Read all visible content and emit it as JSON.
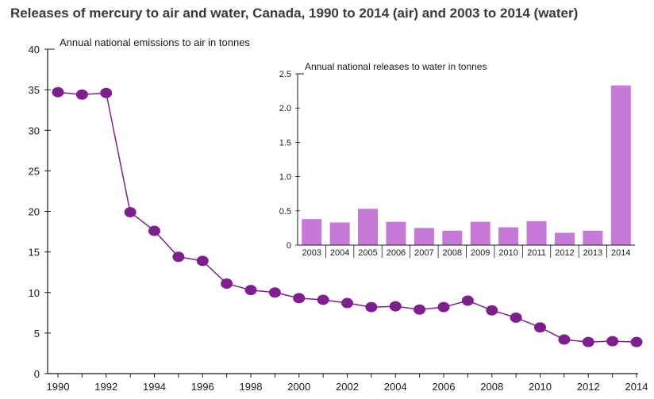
{
  "title": "Releases of mercury to air and water, Canada, 1990 to 2014 (air) and 2003 to 2014 (water)",
  "colors": {
    "line": "#7f1f8f",
    "marker": "#7f1f8f",
    "bar": "#c679d6",
    "axis": "#1a1a1a"
  },
  "chart_data": [
    {
      "type": "line",
      "ylabel": "Annual national emissions to air in tonnes",
      "ylim": [
        0,
        40
      ],
      "yticks": [
        0,
        5,
        10,
        15,
        20,
        25,
        30,
        35,
        40
      ],
      "xticks": [
        1990,
        1992,
        1994,
        1996,
        1998,
        2000,
        2002,
        2004,
        2006,
        2008,
        2010,
        2012,
        2014
      ],
      "x": [
        1990,
        1991,
        1992,
        1993,
        1994,
        1995,
        1996,
        1997,
        1998,
        1999,
        2000,
        2001,
        2002,
        2003,
        2004,
        2005,
        2006,
        2007,
        2008,
        2009,
        2010,
        2011,
        2012,
        2013,
        2014
      ],
      "values": [
        34.7,
        34.4,
        34.6,
        19.9,
        17.6,
        14.4,
        13.9,
        11.1,
        10.3,
        10.0,
        9.3,
        9.1,
        8.7,
        8.2,
        8.3,
        7.9,
        8.2,
        9.0,
        7.8,
        6.9,
        5.7,
        4.2,
        3.9,
        4.0,
        3.9
      ]
    },
    {
      "type": "bar",
      "ylabel": "Annual national releases to water in tonnes",
      "ylim": [
        0,
        2.5
      ],
      "yticks": [
        "0",
        "0.5",
        "1.0",
        "1.5",
        "2.0",
        "2.5"
      ],
      "categories": [
        "2003",
        "2004",
        "2005",
        "2006",
        "2007",
        "2008",
        "2009",
        "2010",
        "2011",
        "2012",
        "2013",
        "2014"
      ],
      "values": [
        0.38,
        0.33,
        0.53,
        0.34,
        0.25,
        0.21,
        0.34,
        0.26,
        0.35,
        0.18,
        0.21,
        2.33
      ]
    }
  ]
}
